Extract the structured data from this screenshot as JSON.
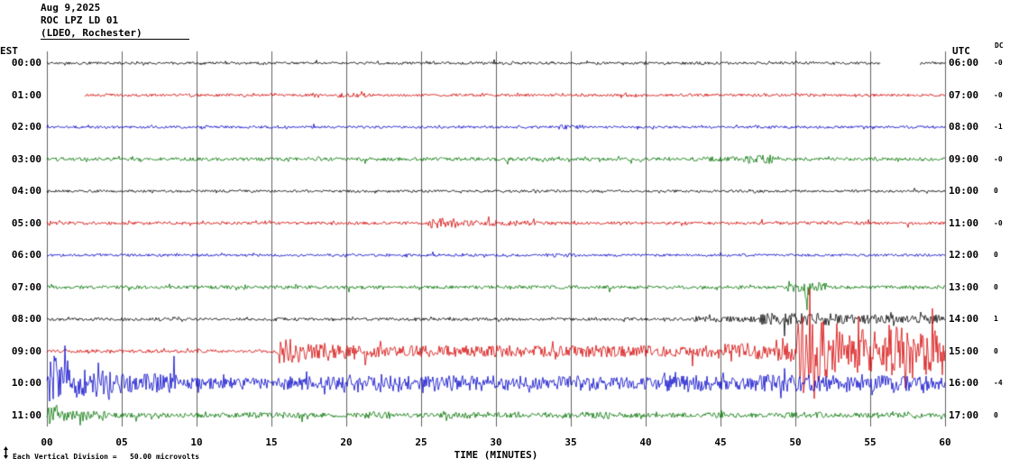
{
  "header": {
    "date": "Aug 9,2025",
    "station": "ROC LPZ LD 01",
    "location": "(LDEO, Rochester)"
  },
  "axes": {
    "left_tz": "EST",
    "right_tz": "UTC",
    "dc_label": "DC",
    "x_title": "TIME (MINUTES)",
    "x_ticks": [
      "00",
      "05",
      "10",
      "15",
      "20",
      "25",
      "30",
      "35",
      "40",
      "45",
      "50",
      "55",
      "60"
    ]
  },
  "footer": {
    "scale_note": "Each Vertical Division =   50.00 microvolts"
  },
  "colors": {
    "black": "#000000",
    "red": "#d40000",
    "blue": "#0000c8",
    "green": "#007300",
    "grid": "#606060",
    "bg": "#ffffff"
  },
  "chart_data": {
    "type": "line",
    "description": "12-hour helicorder seismogram; one 60-minute trace per row; amplitude envelopes in pixels at 50.00 microvolts per vertical division",
    "x_range_minutes": [
      0,
      60
    ],
    "minutes_per_row": 60,
    "rows": [
      {
        "est": "00:00",
        "utc": "06:00",
        "dc": "-0",
        "color": "black",
        "base": 1.4,
        "gaps": [
          [
            55.7,
            58.3
          ]
        ],
        "events": [],
        "spikes": []
      },
      {
        "est": "01:00",
        "utc": "07:00",
        "dc": "-0",
        "color": "red",
        "base": 1.5,
        "start": 2.5,
        "events": [
          [
            19,
            21.5,
            2.6
          ],
          [
            37.5,
            40,
            2.2
          ]
        ],
        "spikes": []
      },
      {
        "est": "02:00",
        "utc": "08:00",
        "dc": "-1",
        "color": "blue",
        "base": 1.4,
        "events": [
          [
            34,
            36,
            2.4
          ]
        ],
        "spikes": []
      },
      {
        "est": "03:00",
        "utc": "09:00",
        "dc": "-0",
        "color": "green",
        "base": 1.9,
        "events": [
          [
            43,
            46.3,
            2.8
          ],
          [
            46.3,
            48.6,
            5
          ]
        ],
        "spikes": []
      },
      {
        "est": "04:00",
        "utc": "10:00",
        "dc": "0",
        "color": "black",
        "base": 1.4,
        "events": [],
        "spikes": []
      },
      {
        "est": "05:00",
        "utc": "11:00",
        "dc": "-0",
        "color": "red",
        "base": 1.7,
        "events": [
          [
            25.4,
            27.6,
            5.5
          ],
          [
            27.6,
            33,
            3
          ]
        ],
        "spikes": []
      },
      {
        "est": "06:00",
        "utc": "12:00",
        "dc": "0",
        "color": "blue",
        "base": 1.4,
        "events": [
          [
            33,
            35.5,
            2.2
          ]
        ],
        "spikes": []
      },
      {
        "est": "07:00",
        "utc": "13:00",
        "dc": "0",
        "color": "green",
        "base": 1.9,
        "events": [
          [
            49.3,
            52.2,
            5.5
          ]
        ],
        "spikes": [
          [
            50.75,
            26,
            0.15
          ]
        ]
      },
      {
        "est": "08:00",
        "utc": "14:00",
        "dc": "1",
        "color": "black",
        "base": 1.6,
        "events": [
          [
            43,
            47.5,
            3.2
          ],
          [
            47.5,
            52.5,
            7
          ],
          [
            52.5,
            60,
            5
          ]
        ],
        "spikes": []
      },
      {
        "est": "09:00",
        "utc": "15:00",
        "dc": "0",
        "color": "red",
        "base": 1.8,
        "events": [
          [
            15.35,
            17,
            14
          ],
          [
            17,
            21,
            9
          ],
          [
            21,
            45,
            6.5
          ],
          [
            45,
            48.5,
            9
          ],
          [
            48.5,
            50,
            15
          ],
          [
            50,
            52.3,
            34
          ],
          [
            52.3,
            55.5,
            24
          ],
          [
            55.5,
            60,
            28
          ]
        ],
        "spikes": [
          [
            50.55,
            30,
            0.12
          ],
          [
            50.95,
            44,
            0.14
          ],
          [
            51.25,
            26,
            0.1
          ],
          [
            56.3,
            16,
            0.1
          ],
          [
            57.9,
            14,
            0.12
          ],
          [
            59.1,
            12,
            0.1
          ]
        ]
      },
      {
        "est": "10:00",
        "utc": "16:00",
        "dc": "-4",
        "color": "blue",
        "base": 2,
        "events": [
          [
            0,
            1.6,
            26
          ],
          [
            1.6,
            4.5,
            16
          ],
          [
            4.5,
            9,
            11
          ],
          [
            9,
            15,
            6.5
          ],
          [
            15,
            20,
            7.5
          ],
          [
            20,
            24.5,
            10
          ],
          [
            24.5,
            31,
            8.5
          ],
          [
            31,
            34,
            7
          ],
          [
            34,
            37.5,
            8.5
          ],
          [
            37.5,
            41,
            7
          ],
          [
            41,
            44.5,
            9
          ],
          [
            44.5,
            47.5,
            7.5
          ],
          [
            47.5,
            53,
            9.5
          ],
          [
            53,
            57,
            10
          ],
          [
            57,
            60,
            8.5
          ]
        ],
        "spikes": [
          [
            0.45,
            12,
            0.2
          ],
          [
            0.95,
            10,
            0.15
          ],
          [
            4.2,
            8,
            0.15
          ]
        ]
      },
      {
        "est": "11:00",
        "utc": "17:00",
        "dc": "0",
        "color": "green",
        "base": 2.6,
        "events": [
          [
            0,
            0.9,
            12
          ],
          [
            0.9,
            4,
            6.5
          ],
          [
            13,
            16,
            3.4
          ],
          [
            20.5,
            23,
            4
          ],
          [
            26.5,
            29,
            4
          ],
          [
            35.5,
            38,
            4
          ],
          [
            44,
            46,
            3.4
          ],
          [
            49,
            52,
            3.6
          ]
        ],
        "spikes": []
      }
    ]
  }
}
